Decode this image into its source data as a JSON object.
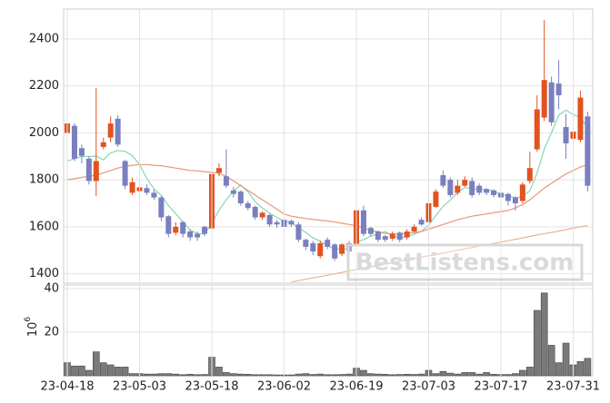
{
  "chart_data": [
    {
      "type": "candlestick",
      "open": [
        2000,
        2030,
        1935,
        1890,
        1795,
        1940,
        1980,
        2060,
        1880,
        1745,
        1752,
        1765,
        1745,
        1725,
        1645,
        1575,
        1620,
        1580,
        1570,
        1600,
        1593,
        1830,
        1815,
        1755,
        1750,
        1700,
        1685,
        1640,
        1650,
        1620,
        1630,
        1625,
        1610,
        1545,
        1530,
        1475,
        1545,
        1525,
        1485,
        1530,
        1525,
        1670,
        1595,
        1580,
        1560,
        1550,
        1575,
        1555,
        1580,
        1630,
        1620,
        1685,
        1820,
        1800,
        1745,
        1775,
        1795,
        1775,
        1760,
        1755,
        1745,
        1740,
        1725,
        1710,
        1795,
        1930,
        2065,
        2215,
        2210,
        2025,
        1975,
        1970,
        2070
      ],
      "high": [
        2060,
        2040,
        1950,
        1900,
        2190,
        1980,
        2070,
        2075,
        1885,
        1810,
        1800,
        1780,
        1760,
        1730,
        1650,
        1620,
        1625,
        1590,
        1580,
        1605,
        1840,
        1870,
        1930,
        1770,
        1755,
        1710,
        1690,
        1665,
        1655,
        1630,
        1640,
        1630,
        1620,
        1550,
        1540,
        1540,
        1555,
        1530,
        1530,
        1540,
        1690,
        1690,
        1600,
        1585,
        1565,
        1580,
        1580,
        1590,
        1610,
        1640,
        1710,
        1760,
        1840,
        1810,
        1800,
        1815,
        1810,
        1785,
        1765,
        1760,
        1755,
        1745,
        1730,
        1790,
        1920,
        2160,
        2480,
        2240,
        2310,
        2080,
        2030,
        2180,
        2090
      ],
      "low": [
        1960,
        1880,
        1870,
        1780,
        1730,
        1930,
        1960,
        1940,
        1760,
        1735,
        1745,
        1735,
        1715,
        1625,
        1555,
        1565,
        1555,
        1540,
        1540,
        1560,
        1585,
        1815,
        1765,
        1725,
        1690,
        1670,
        1630,
        1630,
        1600,
        1595,
        1590,
        1600,
        1535,
        1500,
        1480,
        1465,
        1505,
        1455,
        1475,
        1485,
        1515,
        1560,
        1560,
        1535,
        1535,
        1540,
        1535,
        1545,
        1575,
        1605,
        1610,
        1680,
        1765,
        1725,
        1735,
        1770,
        1725,
        1735,
        1735,
        1725,
        1715,
        1690,
        1670,
        1700,
        1785,
        1920,
        2050,
        2030,
        2100,
        1890,
        1960,
        1960,
        1750
      ],
      "close": [
        2040,
        1890,
        1902,
        1795,
        1880,
        1960,
        2040,
        1950,
        1775,
        1790,
        1768,
        1745,
        1725,
        1640,
        1570,
        1600,
        1570,
        1555,
        1555,
        1570,
        1825,
        1850,
        1775,
        1740,
        1700,
        1680,
        1640,
        1660,
        1610,
        1610,
        1600,
        1610,
        1545,
        1515,
        1495,
        1530,
        1515,
        1465,
        1525,
        1495,
        1670,
        1570,
        1570,
        1545,
        1545,
        1570,
        1545,
        1580,
        1600,
        1610,
        1700,
        1750,
        1775,
        1735,
        1775,
        1800,
        1735,
        1745,
        1745,
        1735,
        1725,
        1710,
        1700,
        1780,
        1850,
        2100,
        2225,
        2045,
        2160,
        1955,
        2005,
        2150,
        1775
      ],
      "up_color": "#e2531f",
      "down_color": "#7a7fbf",
      "series": [
        {
          "color": "#84d6b4",
          "values": [
            1880,
            1890,
            1900,
            1900,
            1901,
            1885,
            1915,
            1925,
            1921,
            1903,
            1865,
            1806,
            1761,
            1734,
            1690,
            1656,
            1621,
            1587,
            1570,
            1570,
            1615,
            1671,
            1716,
            1752,
            1778,
            1749,
            1707,
            1680,
            1658,
            1640,
            1624,
            1618,
            1595,
            1576,
            1553,
            1539,
            1520,
            1504,
            1506,
            1506,
            1534,
            1545,
            1560,
            1570,
            1580,
            1560,
            1555,
            1557,
            1568,
            1581,
            1607,
            1648,
            1687,
            1714,
            1747,
            1767,
            1764,
            1758,
            1760,
            1752,
            1738,
            1732,
            1723,
            1730,
            1753,
            1829,
            1931,
            2000,
            2076,
            2097,
            2078,
            2067,
            2018
          ]
        },
        {
          "color": "#e8977a",
          "values": [
            1800,
            1805,
            1810,
            1815,
            1820,
            1830,
            1840,
            1850,
            1858,
            1862,
            1865,
            1865,
            1862,
            1860,
            1855,
            1850,
            1845,
            1840,
            1838,
            1835,
            1832,
            1828,
            1815,
            1795,
            1775,
            1755,
            1735,
            1715,
            1695,
            1675,
            1655,
            1645,
            1640,
            1635,
            1632,
            1628,
            1625,
            1620,
            1615,
            1610,
            1605,
            1595,
            1585,
            1578,
            1572,
            1570,
            1570,
            1572,
            1575,
            1580,
            1590,
            1600,
            1610,
            1620,
            1630,
            1638,
            1645,
            1650,
            1655,
            1660,
            1665,
            1670,
            1680,
            1695,
            1715,
            1740,
            1765,
            1785,
            1805,
            1825,
            1840,
            1855,
            1865
          ]
        },
        {
          "color": "#f0b29a",
          "values": [
            null,
            null,
            null,
            null,
            null,
            null,
            null,
            null,
            null,
            null,
            null,
            null,
            null,
            null,
            null,
            null,
            null,
            null,
            null,
            null,
            null,
            null,
            null,
            null,
            null,
            null,
            null,
            null,
            null,
            null,
            null,
            1365,
            1371,
            1377,
            1383,
            1388,
            1394,
            1400,
            1406,
            1412,
            1418,
            1424,
            1430,
            1435,
            1441,
            1447,
            1453,
            1459,
            1465,
            1471,
            1477,
            1482,
            1488,
            1494,
            1500,
            1506,
            1512,
            1518,
            1524,
            1529,
            1535,
            1541,
            1547,
            1553,
            1559,
            1565,
            1571,
            1576,
            1582,
            1588,
            1594,
            1600,
            1605
          ]
        }
      ],
      "ylim": [
        1360,
        2527
      ],
      "yticks": [
        1400,
        1600,
        1800,
        2000,
        2200,
        2400
      ],
      "grid": true,
      "watermark": "BestListens.com"
    },
    {
      "type": "bar",
      "categories": [
        "23-04-18",
        null,
        null,
        null,
        null,
        null,
        null,
        null,
        null,
        null,
        "23-05-03",
        null,
        null,
        null,
        null,
        null,
        null,
        null,
        null,
        null,
        "23-05-18",
        null,
        null,
        null,
        null,
        null,
        null,
        null,
        null,
        null,
        "23-06-02",
        null,
        null,
        null,
        null,
        null,
        null,
        null,
        null,
        null,
        "23-06-19",
        null,
        null,
        null,
        null,
        null,
        null,
        null,
        null,
        null,
        "23-07-03",
        null,
        null,
        null,
        null,
        null,
        null,
        null,
        null,
        null,
        "23-07-17",
        null,
        null,
        null,
        null,
        null,
        null,
        null,
        null,
        null,
        "23-07-31",
        null,
        null
      ],
      "values": [
        6,
        4.5,
        4.5,
        2.5,
        11,
        6,
        5,
        4,
        4,
        1,
        1,
        0.8,
        0.8,
        1,
        1,
        0.8,
        0.5,
        0.7,
        0.5,
        0.6,
        8.5,
        4,
        1.5,
        1,
        0.8,
        0.7,
        0.5,
        0.5,
        0.5,
        0.4,
        0.4,
        0.4,
        0.8,
        1,
        0.6,
        0.8,
        0.5,
        0.5,
        0.6,
        0.8,
        3.5,
        2.5,
        1,
        0.8,
        0.7,
        0.5,
        0.6,
        0.7,
        0.6,
        0.8,
        2.5,
        1,
        2,
        1.2,
        0.8,
        1.5,
        1.5,
        0.8,
        1.5,
        0.7,
        0.6,
        0.6,
        1,
        2.5,
        4,
        30,
        38,
        14,
        6,
        15,
        5,
        6.5,
        8
      ],
      "color": "#7a7a7a",
      "ylim": [
        0,
        40
      ],
      "yticks": [
        20,
        40
      ],
      "grid": true,
      "ylabel": {
        "base": "10",
        "exponent": "6"
      }
    }
  ]
}
